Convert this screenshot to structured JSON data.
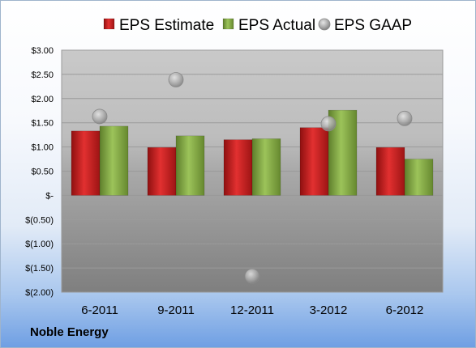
{
  "company": "Noble Energy",
  "chart_data": {
    "type": "bar",
    "categories": [
      "6-2011",
      "9-2011",
      "12-2011",
      "3-2012",
      "6-2012"
    ],
    "series": [
      {
        "name": "EPS Estimate",
        "type": "bar",
        "color": "#d42222",
        "values": [
          1.33,
          0.99,
          1.15,
          1.4,
          0.99
        ]
      },
      {
        "name": "EPS Actual",
        "type": "bar",
        "color": "#8db54a",
        "values": [
          1.43,
          1.23,
          1.17,
          1.76,
          0.75
        ]
      },
      {
        "name": "EPS GAAP",
        "type": "scatter",
        "color": "#b5b5b5",
        "values": [
          1.63,
          2.39,
          -1.67,
          1.48,
          1.59
        ]
      }
    ],
    "ylim": [
      -2.0,
      3.0
    ],
    "yticks": [
      3.0,
      2.5,
      2.0,
      1.5,
      1.0,
      0.5,
      0.0,
      -0.5,
      -1.0,
      -1.5,
      -2.0
    ],
    "ytick_labels": [
      "$3.00",
      "$2.50",
      "$2.00",
      "$1.50",
      "$1.00",
      "$0.50",
      "$-",
      "$(0.50)",
      "$(1.00)",
      "$(1.50)",
      "$(2.00)"
    ],
    "legend_position": "top",
    "grid": true
  }
}
